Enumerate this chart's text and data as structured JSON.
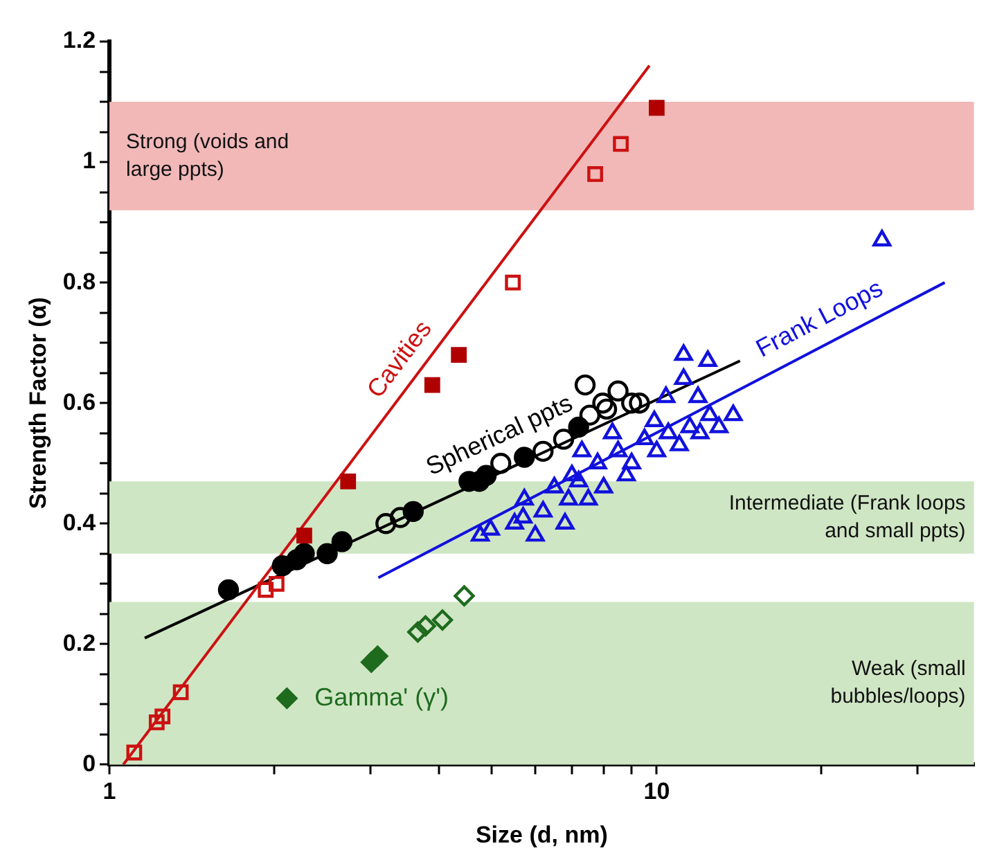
{
  "chart_data": {
    "type": "scatter",
    "xlabel": "Size (d, nm)",
    "ylabel": "Strength Factor (α)",
    "log": "x",
    "grid": false,
    "legend": false,
    "xlim": [
      1,
      38
    ],
    "xticks": [
      1,
      {
        "value": 2,
        "label": null
      },
      {
        "value": 3,
        "label": null
      },
      {
        "value": 4,
        "label": null
      },
      {
        "value": 5,
        "label": null
      },
      {
        "value": 6,
        "label": null
      },
      {
        "value": 7,
        "label": null
      },
      {
        "value": 8,
        "label": null
      },
      {
        "value": 9,
        "label": null
      },
      10,
      {
        "value": 20,
        "label": null
      },
      {
        "value": 30,
        "label": null
      }
    ],
    "ylim": [
      0,
      1.2
    ],
    "yticks": [
      0,
      {
        "value": 0.05,
        "label": null
      },
      {
        "value": 0.1,
        "label": null
      },
      {
        "value": 0.15,
        "label": null
      },
      0.2,
      {
        "value": 0.25,
        "label": null
      },
      {
        "value": 0.3,
        "label": null
      },
      {
        "value": 0.35,
        "label": null
      },
      0.4,
      {
        "value": 0.45,
        "label": null
      },
      {
        "value": 0.5,
        "label": null
      },
      {
        "value": 0.55,
        "label": null
      },
      0.6,
      {
        "value": 0.65,
        "label": null
      },
      {
        "value": 0.7,
        "label": null
      },
      {
        "value": 0.75,
        "label": null
      },
      0.8,
      {
        "value": 0.85,
        "label": null
      },
      {
        "value": 0.9,
        "label": null
      },
      {
        "value": 0.95,
        "label": null
      },
      1,
      {
        "value": 1.05,
        "label": null
      },
      {
        "value": 1.1,
        "label": null
      },
      {
        "value": 1.15,
        "label": null
      },
      1.2
    ],
    "bands": [
      {
        "axis": "y",
        "from": 0.92,
        "to": 1.1,
        "label": "Strong (voids and large ppts)",
        "color": "#f2b8b8"
      },
      {
        "axis": "y",
        "from": 0.35,
        "to": 0.47,
        "label": "Intermediate (Frank loops and small ppts)",
        "color": "#cfe6c4"
      },
      {
        "axis": "y",
        "from": 0,
        "to": 0.27,
        "label": "Weak (small bubbles/loops)",
        "color": "#cfe6c4"
      }
    ],
    "series": [
      {
        "type": "line",
        "name": "Cavities",
        "color": "#cc1111",
        "marker": "none",
        "x": [
          1.06,
          9.7
        ],
        "values": [
          0,
          1.16
        ]
      },
      {
        "type": "line",
        "name": "Spherical ppts",
        "color": "#000000",
        "marker": "none",
        "x": [
          1.16,
          14.2
        ],
        "values": [
          0.21,
          0.67
        ]
      },
      {
        "type": "line",
        "name": "Frank Loops",
        "color": "#1111dd",
        "marker": "none",
        "x": [
          3.1,
          33.6
        ],
        "values": [
          0.31,
          0.8
        ]
      },
      {
        "color": "#cc1111",
        "marker": "square",
        "x": [
          1.11,
          1.22,
          1.25,
          1.35,
          1.93,
          2.02,
          5.46,
          7.72,
          8.6
        ],
        "values": [
          0.02,
          0.07,
          0.08,
          0.12,
          0.29,
          0.3,
          0.8,
          0.98,
          1.03
        ]
      },
      {
        "color": "#b00000",
        "marker": "square",
        "x": [
          2.27,
          2.73,
          3.89,
          4.35,
          10
        ],
        "values": [
          0.38,
          0.47,
          0.63,
          0.68,
          1.09
        ]
      },
      {
        "color": "#000000",
        "marker": "circle",
        "x": [
          1.65,
          2.07,
          2.2,
          2.27,
          2.5,
          2.66,
          3.59,
          4.54,
          4.74,
          4.88,
          5.73,
          7.2
        ],
        "values": [
          0.29,
          0.33,
          0.34,
          0.35,
          0.35,
          0.37,
          0.42,
          0.47,
          0.47,
          0.48,
          0.51,
          0.56
        ]
      },
      {
        "color": "#000000",
        "marker": "circle",
        "x": [
          3.2,
          3.4,
          5.19,
          6.2,
          6.76,
          7.4,
          7.55,
          7.97,
          8.1,
          8.5,
          9.0,
          9.3
        ],
        "values": [
          0.4,
          0.41,
          0.5,
          0.52,
          0.54,
          0.63,
          0.58,
          0.6,
          0.59,
          0.62,
          0.6,
          0.6
        ]
      },
      {
        "color": "#1111dd",
        "marker": "triangle",
        "x": [
          4.76,
          4.97,
          5.5,
          5.7,
          5.73,
          6.0,
          6.2,
          6.5,
          6.8,
          6.9,
          7.0,
          7.2,
          7.3,
          7.5,
          7.8,
          8.0,
          8.3,
          8.5,
          8.8,
          9.0,
          9.5,
          9.9,
          10,
          10.4,
          10.5,
          11,
          11.2,
          11.2,
          11.5,
          11.9,
          12,
          12.4,
          12.5,
          13,
          13.8,
          25.8
        ],
        "values": [
          0.38,
          0.39,
          0.4,
          0.41,
          0.44,
          0.38,
          0.42,
          0.46,
          0.4,
          0.44,
          0.48,
          0.47,
          0.52,
          0.44,
          0.5,
          0.46,
          0.55,
          0.52,
          0.48,
          0.5,
          0.54,
          0.57,
          0.52,
          0.61,
          0.55,
          0.53,
          0.64,
          0.68,
          0.56,
          0.61,
          0.55,
          0.67,
          0.58,
          0.56,
          0.58,
          0.87
        ]
      },
      {
        "name": "Gamma' (γ')",
        "color": "#1e6b1e",
        "marker": "diamond",
        "x": [
          2.11,
          3.01,
          3.09
        ],
        "values": [
          0.11,
          0.17,
          0.18
        ]
      },
      {
        "color": "#1e6b1e",
        "marker": "diamond",
        "x": [
          3.66,
          3.78,
          4.06,
          4.45
        ],
        "values": [
          0.22,
          0.23,
          0.24,
          0.28
        ]
      }
    ]
  }
}
